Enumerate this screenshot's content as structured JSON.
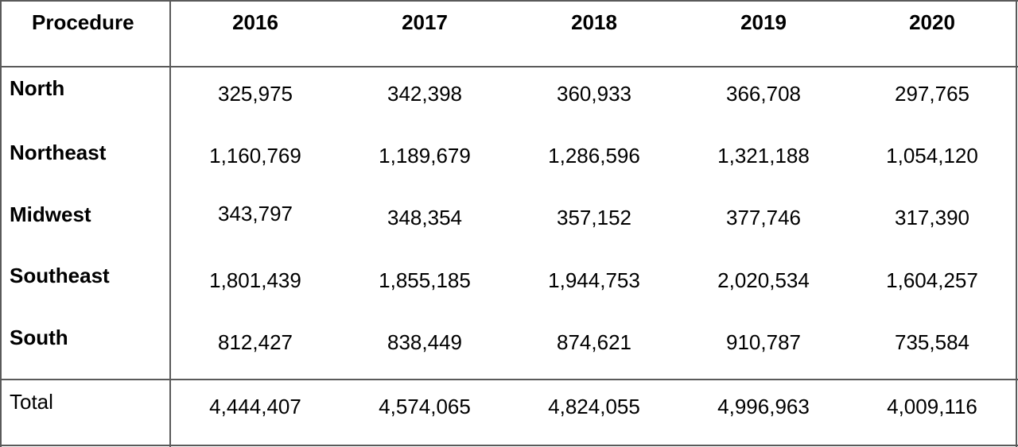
{
  "table": {
    "header": {
      "label": "Procedure",
      "years": [
        "2016",
        "2017",
        "2018",
        "2019",
        "2020"
      ]
    },
    "rows": [
      {
        "label": "North",
        "values": [
          "325,975",
          "342,398",
          "360,933",
          "366,708",
          "297,765"
        ]
      },
      {
        "label": "Northeast",
        "values": [
          "1,160,769",
          "1,189,679",
          "1,286,596",
          "1,321,188",
          "1,054,120"
        ]
      },
      {
        "label": "Midwest",
        "values": [
          "343,797",
          "348,354",
          "357,152",
          "377,746",
          "317,390"
        ]
      },
      {
        "label": "Southeast",
        "values": [
          "1,801,439",
          "1,855,185",
          "1,944,753",
          "2,020,534",
          "1,604,257"
        ]
      },
      {
        "label": "South",
        "values": [
          "812,427",
          "838,449",
          "874,621",
          "910,787",
          "735,584"
        ]
      }
    ],
    "total": {
      "label": "Total",
      "values": [
        "4,444,407",
        "4,574,065",
        "4,824,055",
        "4,996,963",
        "4,009,116"
      ]
    }
  }
}
